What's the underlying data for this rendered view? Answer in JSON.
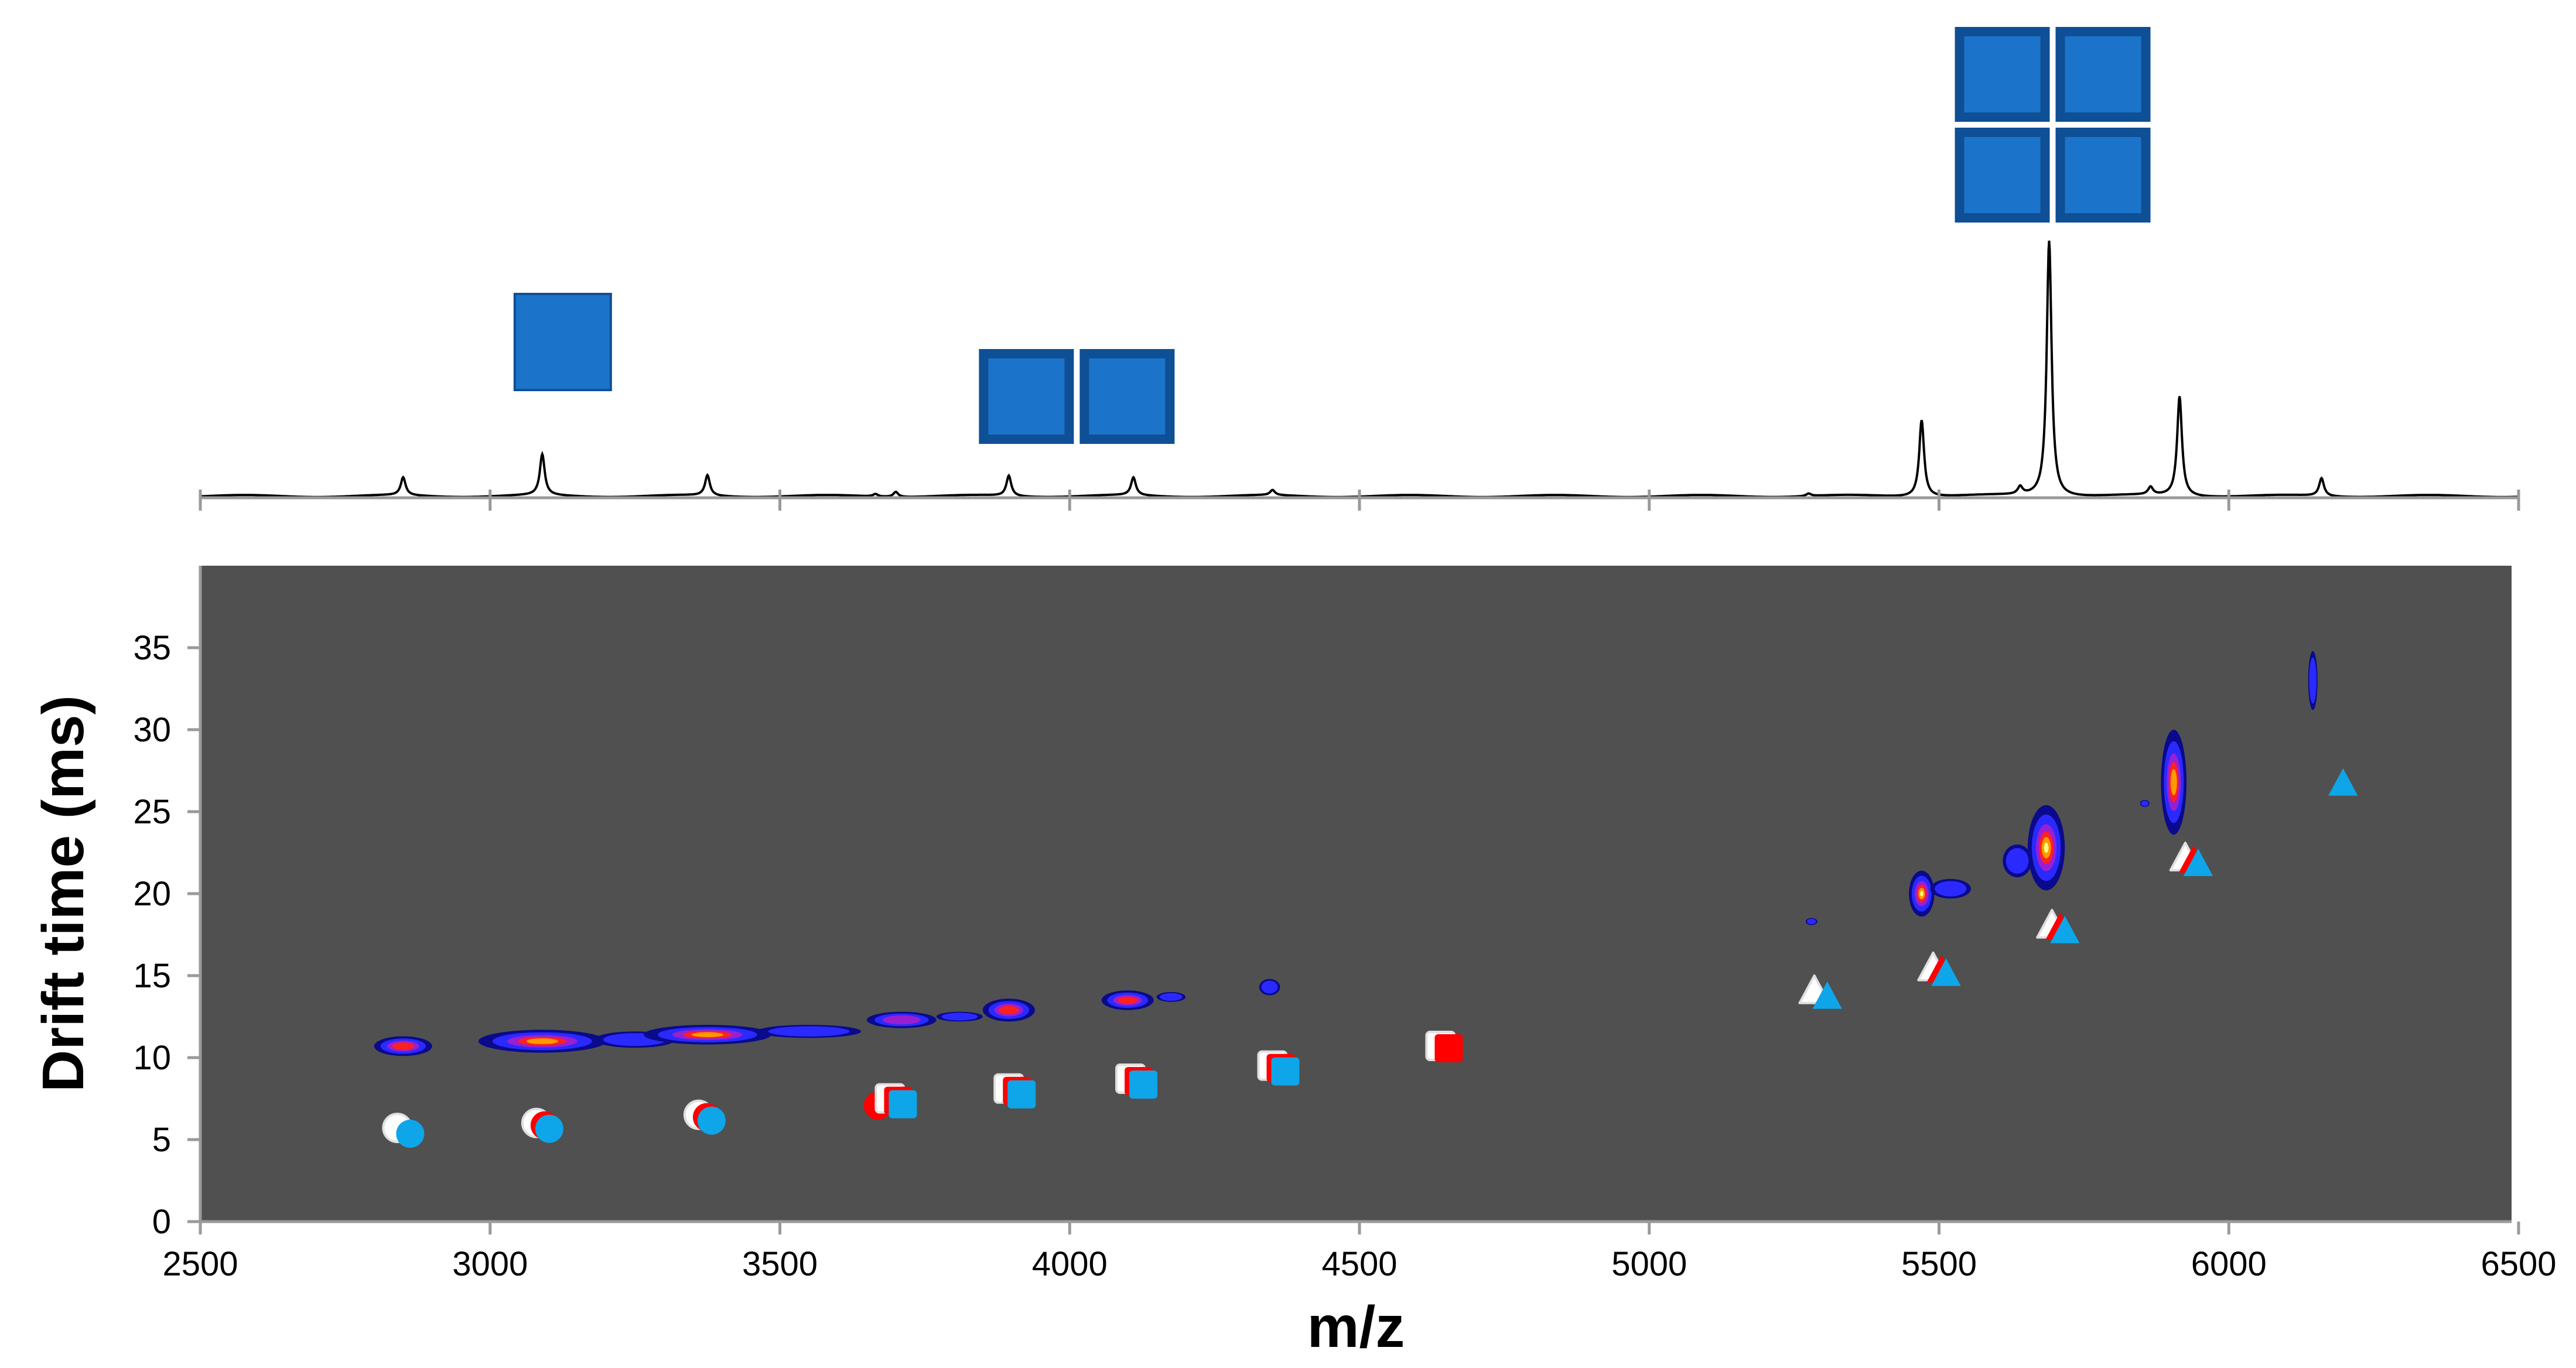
{
  "chart_data": [
    {
      "type": "line",
      "title": "",
      "xlabel": "",
      "ylabel": "",
      "xlim": [
        2500,
        6500
      ],
      "grid": false,
      "x_ticks": [
        2500,
        3000,
        3500,
        4000,
        4500,
        5000,
        5500,
        6000,
        6500
      ],
      "peaks": [
        {
          "mz": 2850,
          "rel_intensity": 0.07
        },
        {
          "mz": 3090,
          "rel_intensity": 0.16
        },
        {
          "mz": 3375,
          "rel_intensity": 0.08
        },
        {
          "mz": 3665,
          "rel_intensity": 0.01
        },
        {
          "mz": 3700,
          "rel_intensity": 0.02
        },
        {
          "mz": 3895,
          "rel_intensity": 0.08
        },
        {
          "mz": 4110,
          "rel_intensity": 0.07
        },
        {
          "mz": 4350,
          "rel_intensity": 0.02
        },
        {
          "mz": 5275,
          "rel_intensity": 0.01
        },
        {
          "mz": 5470,
          "rel_intensity": 0.3
        },
        {
          "mz": 5640,
          "rel_intensity": 0.03
        },
        {
          "mz": 5690,
          "rel_intensity": 1.0
        },
        {
          "mz": 5865,
          "rel_intensity": 0.03
        },
        {
          "mz": 5915,
          "rel_intensity": 0.39
        },
        {
          "mz": 6160,
          "rel_intensity": 0.07
        }
      ],
      "glyph_annotations": [
        {
          "label": "monomer",
          "mz": 3090,
          "squares": 1
        },
        {
          "label": "dimer",
          "mz": 3895,
          "squares": 2
        },
        {
          "label": "tetramer",
          "mz": 5690,
          "squares": 4
        }
      ]
    },
    {
      "type": "heatmap",
      "title": "",
      "xlabel": "m/z",
      "ylabel": "Drift time (ms)",
      "xlim": [
        2500,
        6500
      ],
      "ylim": [
        0,
        40
      ],
      "x_ticks": [
        2500,
        3000,
        3500,
        4000,
        4500,
        5000,
        5500,
        6000,
        6500
      ],
      "y_ticks": [
        0,
        5,
        10,
        15,
        20,
        25,
        30,
        35
      ],
      "background": "#505050",
      "blobs": [
        {
          "mz": 2850,
          "dt": 10.7,
          "mz_spread": 50,
          "dt_spread": 0.6,
          "intensity": 0.7
        },
        {
          "mz": 3090,
          "dt": 11.0,
          "mz_spread": 110,
          "dt_spread": 0.7,
          "intensity": 0.85
        },
        {
          "mz": 3250,
          "dt": 11.1,
          "mz_spread": 70,
          "dt_spread": 0.5,
          "intensity": 0.4
        },
        {
          "mz": 3375,
          "dt": 11.4,
          "mz_spread": 110,
          "dt_spread": 0.6,
          "intensity": 0.8
        },
        {
          "mz": 3550,
          "dt": 11.6,
          "mz_spread": 90,
          "dt_spread": 0.4,
          "intensity": 0.35
        },
        {
          "mz": 3710,
          "dt": 12.3,
          "mz_spread": 60,
          "dt_spread": 0.5,
          "intensity": 0.45
        },
        {
          "mz": 3810,
          "dt": 12.5,
          "mz_spread": 40,
          "dt_spread": 0.3,
          "intensity": 0.3
        },
        {
          "mz": 3895,
          "dt": 12.9,
          "mz_spread": 45,
          "dt_spread": 0.7,
          "intensity": 0.7
        },
        {
          "mz": 4100,
          "dt": 13.5,
          "mz_spread": 45,
          "dt_spread": 0.6,
          "intensity": 0.7
        },
        {
          "mz": 4175,
          "dt": 13.7,
          "mz_spread": 25,
          "dt_spread": 0.3,
          "intensity": 0.3
        },
        {
          "mz": 4345,
          "dt": 14.3,
          "mz_spread": 18,
          "dt_spread": 0.5,
          "intensity": 0.35
        },
        {
          "mz": 5470,
          "dt": 20.0,
          "mz_spread": 22,
          "dt_spread": 1.4,
          "intensity": 0.95
        },
        {
          "mz": 5520,
          "dt": 20.3,
          "mz_spread": 35,
          "dt_spread": 0.6,
          "intensity": 0.35
        },
        {
          "mz": 5685,
          "dt": 22.8,
          "mz_spread": 32,
          "dt_spread": 2.6,
          "intensity": 1.0
        },
        {
          "mz": 5635,
          "dt": 22.0,
          "mz_spread": 25,
          "dt_spread": 1.0,
          "intensity": 0.4
        },
        {
          "mz": 5905,
          "dt": 26.8,
          "mz_spread": 22,
          "dt_spread": 3.2,
          "intensity": 0.85
        },
        {
          "mz": 6145,
          "dt": 33.0,
          "mz_spread": 8,
          "dt_spread": 1.8,
          "intensity": 0.35
        },
        {
          "mz": 5280,
          "dt": 18.3,
          "mz_spread": 10,
          "dt_spread": 0.15,
          "intensity": 0.3
        },
        {
          "mz": 5855,
          "dt": 25.5,
          "mz_spread": 5,
          "dt_spread": 0.2,
          "intensity": 0.25
        }
      ],
      "marker_series": [
        {
          "color_red": "#ff0000",
          "color_white": "#ffffff",
          "color_blue": "#0ea6e8",
          "points": [
            {
              "shape": "circle",
              "mz": 2850,
              "dt": 5.5,
              "white": true,
              "red": false,
              "blue": true
            },
            {
              "shape": "circle",
              "mz": 3090,
              "dt": 5.8,
              "white": true,
              "red": true,
              "blue": true
            },
            {
              "shape": "circle",
              "mz": 3370,
              "dt": 6.3,
              "white": true,
              "red": true,
              "blue": true
            },
            {
              "shape": "circle",
              "mz": 3665,
              "dt": 7.0,
              "white": false,
              "red": true,
              "blue": false
            },
            {
              "shape": "square",
              "mz": 3700,
              "dt": 7.3,
              "white": true,
              "red": true,
              "blue": true
            },
            {
              "shape": "square",
              "mz": 3905,
              "dt": 7.9,
              "white": true,
              "red": true,
              "blue": true
            },
            {
              "shape": "square",
              "mz": 4115,
              "dt": 8.5,
              "white": true,
              "red": true,
              "blue": true
            },
            {
              "shape": "square",
              "mz": 4360,
              "dt": 9.3,
              "white": true,
              "red": true,
              "blue": true
            },
            {
              "shape": "square",
              "mz": 4650,
              "dt": 10.5,
              "white": true,
              "red": true,
              "blue": false
            },
            {
              "shape": "triangle",
              "mz": 5295,
              "dt": 13.8,
              "white": true,
              "red": false,
              "blue": true
            },
            {
              "shape": "triangle",
              "mz": 5500,
              "dt": 15.2,
              "white": true,
              "red": true,
              "blue": true
            },
            {
              "shape": "triangle",
              "mz": 5705,
              "dt": 17.8,
              "white": true,
              "red": true,
              "blue": true
            },
            {
              "shape": "triangle",
              "mz": 5935,
              "dt": 21.9,
              "white": true,
              "red": true,
              "blue": true
            },
            {
              "shape": "triangle",
              "mz": 6185,
              "dt": 26.8,
              "white": false,
              "red": false,
              "blue": true
            }
          ]
        }
      ]
    }
  ]
}
